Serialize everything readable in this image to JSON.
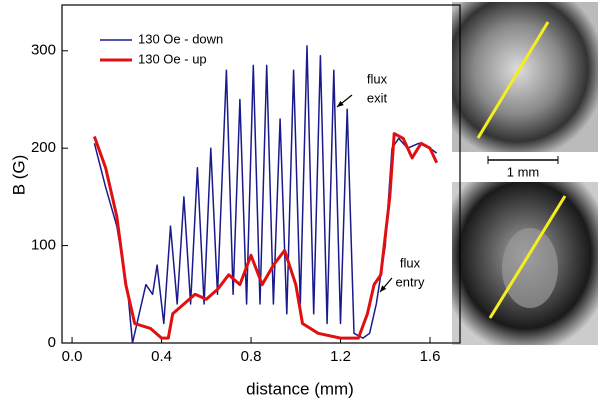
{
  "chart_data": {
    "type": "line",
    "ylabel": "B (G)",
    "xlabel": "distance (mm)",
    "xlim": [
      -0.045,
      1.734
    ],
    "ylim": [
      0,
      347
    ],
    "xticks": [
      {
        "value": 0,
        "label": "0.0"
      },
      0.4,
      0.8,
      1.2,
      1.6
    ],
    "yticks": [
      0,
      100,
      200,
      300
    ],
    "legend": "upper left",
    "annotations": [
      [
        "flux",
        "exit"
      ],
      [
        "flux",
        "entry"
      ]
    ],
    "scale_bar": "1 mm",
    "series": [
      {
        "name": "130 Oe - down",
        "color": "#1a1a8c",
        "width": 1.5,
        "x": [
          0.1,
          0.15,
          0.2,
          0.25,
          0.27,
          0.3,
          0.33,
          0.36,
          0.38,
          0.41,
          0.44,
          0.47,
          0.5,
          0.53,
          0.56,
          0.59,
          0.62,
          0.65,
          0.69,
          0.72,
          0.75,
          0.78,
          0.81,
          0.84,
          0.87,
          0.9,
          0.93,
          0.96,
          0.99,
          1.02,
          1.05,
          1.08,
          1.11,
          1.14,
          1.17,
          1.2,
          1.23,
          1.26,
          1.3,
          1.33,
          1.36,
          1.4,
          1.43,
          1.46,
          1.5,
          1.55,
          1.6,
          1.63
        ],
        "values": [
          205,
          160,
          120,
          50,
          0,
          30,
          60,
          50,
          80,
          20,
          120,
          40,
          150,
          40,
          180,
          40,
          200,
          50,
          280,
          50,
          250,
          40,
          285,
          40,
          285,
          40,
          230,
          30,
          280,
          40,
          305,
          30,
          295,
          20,
          280,
          20,
          240,
          10,
          5,
          10,
          40,
          100,
          200,
          210,
          200,
          205,
          200,
          195
        ]
      },
      {
        "name": "130 Oe - up",
        "color": "#e01010",
        "width": 3,
        "x": [
          0.1,
          0.15,
          0.2,
          0.24,
          0.28,
          0.35,
          0.4,
          0.43,
          0.45,
          0.5,
          0.55,
          0.6,
          0.65,
          0.7,
          0.75,
          0.8,
          0.85,
          0.9,
          0.95,
          1.0,
          1.03,
          1.1,
          1.2,
          1.28,
          1.32,
          1.35,
          1.38,
          1.42,
          1.44,
          1.48,
          1.52,
          1.56,
          1.6,
          1.63
        ],
        "values": [
          212,
          180,
          130,
          60,
          20,
          15,
          5,
          5,
          30,
          40,
          50,
          45,
          55,
          70,
          60,
          90,
          60,
          80,
          95,
          60,
          20,
          10,
          5,
          5,
          30,
          60,
          70,
          150,
          215,
          210,
          190,
          205,
          200,
          185
        ]
      }
    ]
  }
}
